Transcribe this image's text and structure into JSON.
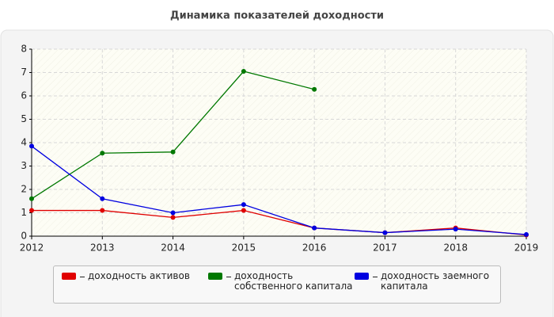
{
  "chart_data": {
    "type": "line",
    "title": "Динамика показателей доходности",
    "x": [
      2012,
      2013,
      2014,
      2015,
      2016,
      2017,
      2018,
      2019
    ],
    "xlim": [
      2012,
      2019
    ],
    "xticks": [
      2012,
      2013,
      2014,
      2015,
      2016,
      2017,
      2018,
      2019
    ],
    "ylim": [
      0,
      8
    ],
    "yticks": [
      0,
      1,
      2,
      3,
      4,
      5,
      6,
      7,
      8
    ],
    "grid": true,
    "legend": "bottom",
    "series": [
      {
        "name": "доходность активов",
        "color": "#e00000",
        "values": [
          1.1,
          1.1,
          0.8,
          1.1,
          0.35,
          0.15,
          0.35,
          0.05
        ]
      },
      {
        "name": "доходность собственного капитала",
        "color": "#007800",
        "values": [
          1.6,
          3.55,
          3.6,
          7.05,
          6.28,
          null,
          null,
          null
        ]
      },
      {
        "name": "доходность заемного капитала",
        "color": "#0000e0",
        "values": [
          3.85,
          1.6,
          1.0,
          1.35,
          0.35,
          0.15,
          0.3,
          0.07
        ]
      }
    ]
  }
}
